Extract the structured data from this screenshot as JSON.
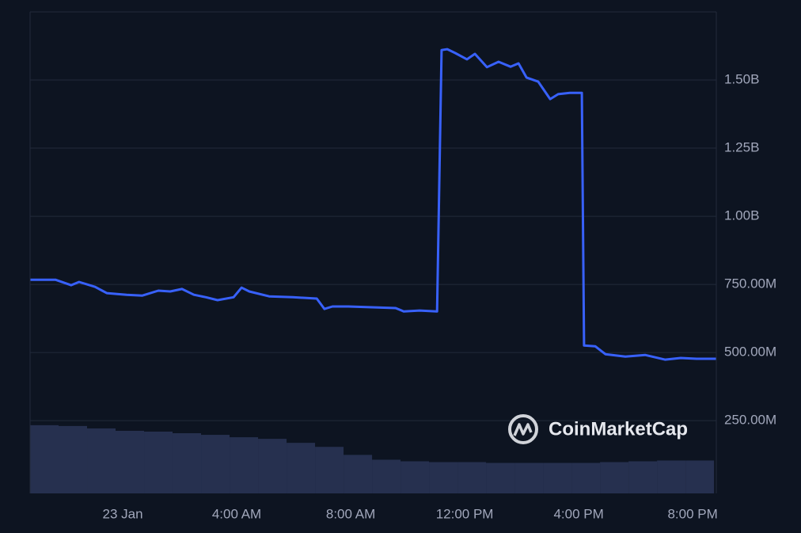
{
  "watermark": "CoinMarketCap",
  "chart_data": [
    {
      "type": "line",
      "color": "#3861fb",
      "x": [
        -3.25,
        -2.36,
        -1.81,
        -1.53,
        -0.97,
        -0.56,
        0.14,
        0.69,
        1.25,
        1.67,
        2.08,
        2.5,
        2.92,
        3.33,
        3.89,
        4.17,
        4.44,
        5.14,
        5.97,
        6.81,
        7.08,
        7.36,
        7.92,
        8.75,
        9.58,
        9.86,
        10.42,
        11.03,
        11.19,
        11.39,
        11.67,
        12.08,
        12.36,
        12.78,
        13.19,
        13.61,
        13.89,
        14.17,
        14.58,
        15.0,
        15.28,
        15.69,
        16.11,
        16.19,
        16.58,
        16.94,
        17.64,
        18.33,
        19.03,
        19.58,
        20.14,
        20.83
      ],
      "values": [
        767,
        767,
        747,
        759,
        741,
        718,
        712,
        709,
        727,
        724,
        733,
        712,
        703,
        692,
        703,
        738,
        724,
        706,
        703,
        698,
        660,
        669,
        669,
        666,
        663,
        651,
        654,
        651,
        1610,
        1613,
        1599,
        1576,
        1596,
        1547,
        1567,
        1549,
        1561,
        1509,
        1494,
        1430,
        1448,
        1453,
        1453,
        526,
        523,
        494,
        485,
        491,
        474,
        480,
        477,
        477
      ],
      "xlim": [
        -3.25,
        20.83
      ],
      "xticks": [
        {
          "value": 0,
          "label": "23 Jan"
        },
        {
          "value": 4,
          "label": "4:00 AM"
        },
        {
          "value": 8,
          "label": "8:00 AM"
        },
        {
          "value": 12,
          "label": "12:00 PM"
        },
        {
          "value": 16,
          "label": "4:00 PM"
        },
        {
          "value": 20,
          "label": "8:00 PM"
        }
      ],
      "ylim": [
        -17,
        1750
      ],
      "yticks": [
        {
          "value": 250,
          "label": "250.00M"
        },
        {
          "value": 500,
          "label": "500.00M"
        },
        {
          "value": 750,
          "label": "750.00M"
        },
        {
          "value": 1000,
          "label": "1.00B"
        },
        {
          "value": 1250,
          "label": "1.25B"
        },
        {
          "value": 1500,
          "label": "1.50B"
        }
      ],
      "grid": true
    },
    {
      "type": "bar",
      "color": "#26304f",
      "x": [
        -3.25,
        -2.25,
        -1.25,
        -0.25,
        0.75,
        1.75,
        2.75,
        3.75,
        4.75,
        5.75,
        6.75,
        7.75,
        8.75,
        9.75,
        10.75,
        11.75,
        12.75,
        13.75,
        14.75,
        15.75,
        16.75,
        17.75,
        18.75,
        19.75
      ],
      "values": [
        85,
        84,
        81,
        78,
        77,
        75,
        73,
        70,
        68,
        63,
        58,
        48,
        42,
        40,
        39,
        39,
        38,
        38,
        38,
        38,
        39,
        40,
        41,
        41
      ],
      "xlim": [
        -3.25,
        20.83
      ],
      "ylim": [
        0,
        600
      ]
    }
  ]
}
